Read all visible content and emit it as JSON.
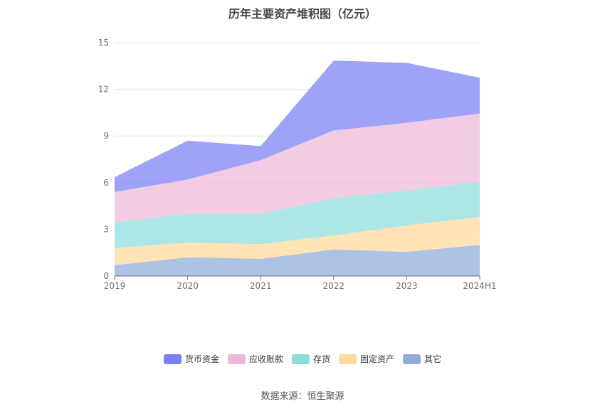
{
  "chart_data": {
    "type": "area",
    "stacked": true,
    "title": "历年主要资产堆积图（亿元）",
    "categories": [
      "2019",
      "2020",
      "2021",
      "2022",
      "2023",
      "2024H1"
    ],
    "ylim": [
      0,
      15
    ],
    "yticks": [
      "0",
      "3",
      "6",
      "9",
      "12",
      "15"
    ],
    "grid": true,
    "legend_position": "bottom",
    "series": [
      {
        "name": "其它",
        "color": "#8fabdc",
        "values": [
          0.7,
          1.2,
          1.1,
          1.7,
          1.55,
          2.0
        ]
      },
      {
        "name": "固定资产",
        "color": "#ffd99a",
        "values": [
          1.1,
          0.95,
          0.95,
          0.9,
          1.7,
          1.8
        ]
      },
      {
        "name": "存货",
        "color": "#8ddcdc",
        "values": [
          1.65,
          1.85,
          1.95,
          2.4,
          2.25,
          2.25
        ]
      },
      {
        "name": "应收账款",
        "color": "#ebb8d8",
        "values": [
          1.95,
          2.2,
          3.45,
          4.35,
          4.35,
          4.4
        ]
      },
      {
        "name": "货币资金",
        "color": "#7a7ff5",
        "values": [
          0.95,
          2.5,
          0.9,
          4.5,
          3.85,
          2.3
        ]
      }
    ],
    "legend_order": [
      "货币资金",
      "应收账款",
      "存货",
      "固定资产",
      "其它"
    ]
  },
  "source_text": "数据来源：恒生聚源"
}
